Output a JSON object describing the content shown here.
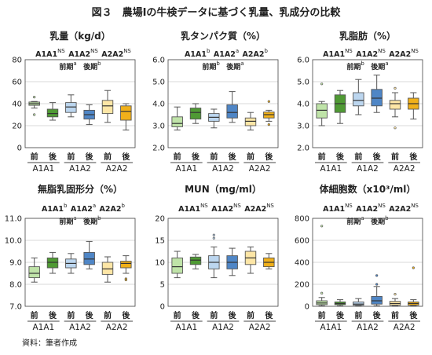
{
  "figure": {
    "title": "図３　農場Ⅰの牛検データに基づく乳量、乳成分の比較",
    "source": "資料：筆者作成"
  },
  "colors": {
    "gray_light": "#e8e8e8",
    "light_green": "#bfe3a8",
    "dark_green": "#4f9a34",
    "light_blue": "#bcd6ef",
    "mid_blue": "#4f86c6",
    "light_yellow": "#fde6a6",
    "gold": "#f0b01a",
    "border": "#555555",
    "grid": "#cccccc"
  },
  "chart_data": [
    {
      "type": "boxplot",
      "title": "乳量（kg/d）",
      "ylim": [
        0,
        80
      ],
      "yticks": [
        "0",
        "20",
        "40",
        "60",
        "80"
      ],
      "significance": {
        "line1": [
          {
            "label": "A1A1",
            "sup": "NS"
          },
          {
            "label": "A1A2",
            "sup": "NS"
          },
          {
            "label": "A2A2",
            "sup": "NS"
          }
        ],
        "line2": [
          {
            "label": "前期",
            "sup": "a"
          },
          {
            "label": "後期",
            "sup": "b"
          }
        ]
      },
      "x_tick_labels": [
        "前",
        "後",
        "前",
        "後",
        "前",
        "後"
      ],
      "group_labels": [
        "A1A1",
        "A1A2",
        "A2A2"
      ],
      "boxes": [
        {
          "q1": 38.5,
          "median": 40,
          "q3": 41.5,
          "min": 36,
          "max": 42,
          "outliers": [
            46,
            30
          ],
          "fill": "light_green"
        },
        {
          "q1": 28,
          "median": 31,
          "q3": 35,
          "min": 25,
          "max": 41,
          "outliers": [],
          "fill": "dark_green"
        },
        {
          "q1": 32,
          "median": 37,
          "q3": 41,
          "min": 28,
          "max": 48,
          "outliers": [],
          "fill": "light_blue"
        },
        {
          "q1": 26,
          "median": 30,
          "q3": 34,
          "min": 21,
          "max": 39,
          "outliers": [],
          "fill": "mid_blue"
        },
        {
          "q1": 31,
          "median": 38,
          "q3": 43,
          "min": 23,
          "max": 52,
          "outliers": [],
          "fill": "light_yellow"
        },
        {
          "q1": 25,
          "median": 33,
          "q3": 38,
          "min": 16,
          "max": 40,
          "outliers": [],
          "fill": "gold"
        }
      ]
    },
    {
      "type": "boxplot",
      "title": "乳タンパク質（%）",
      "ylim": [
        2.0,
        6.0
      ],
      "yticks": [
        "2.0",
        "3.0",
        "4.0",
        "5.0",
        "6.0"
      ],
      "significance": {
        "line1": [
          {
            "label": "A1A1",
            "sup": "b"
          },
          {
            "label": "A1A2",
            "sup": "a"
          },
          {
            "label": "A2A2",
            "sup": "b"
          }
        ],
        "line2": [
          {
            "label": "前期",
            "sup": "b"
          },
          {
            "label": "後期",
            "sup": "a"
          }
        ]
      },
      "x_tick_labels": [
        "前",
        "後",
        "前",
        "後",
        "前",
        "後"
      ],
      "group_labels": [
        "A1A1",
        "A1A2",
        "A2A2"
      ],
      "boxes": [
        {
          "q1": 2.95,
          "median": 3.1,
          "q3": 3.4,
          "min": 2.8,
          "max": 3.85,
          "outliers": [],
          "fill": "light_green"
        },
        {
          "q1": 3.3,
          "median": 3.6,
          "q3": 3.8,
          "min": 3.1,
          "max": 4.0,
          "outliers": [],
          "fill": "dark_green"
        },
        {
          "q1": 3.2,
          "median": 3.38,
          "q3": 3.55,
          "min": 2.9,
          "max": 3.75,
          "outliers": [],
          "fill": "light_blue"
        },
        {
          "q1": 3.35,
          "median": 3.6,
          "q3": 3.95,
          "min": 3.15,
          "max": 4.55,
          "outliers": [],
          "fill": "mid_blue"
        },
        {
          "q1": 3.0,
          "median": 3.2,
          "q3": 3.35,
          "min": 2.8,
          "max": 3.6,
          "outliers": [],
          "fill": "light_yellow"
        },
        {
          "q1": 3.35,
          "median": 3.5,
          "q3": 3.62,
          "min": 3.2,
          "max": 3.7,
          "outliers": [
            4.1,
            3.05
          ],
          "fill": "gold"
        }
      ]
    },
    {
      "type": "boxplot",
      "title": "乳脂肪（%）",
      "ylim": [
        2.0,
        6.0
      ],
      "yticks": [
        "2.0",
        "3.0",
        "4.0",
        "5.0",
        "6.0"
      ],
      "significance": {
        "line1": [
          {
            "label": "A1A1",
            "sup": "NS"
          },
          {
            "label": "A1A2",
            "sup": "NS"
          },
          {
            "label": "A2A2",
            "sup": "NS"
          }
        ],
        "line2": [
          {
            "label": "前期",
            "sup": "b"
          },
          {
            "label": "後期",
            "sup": "a"
          }
        ]
      },
      "x_tick_labels": [
        "前",
        "後",
        "前",
        "後",
        "前",
        "後"
      ],
      "group_labels": [
        "A1A1",
        "A1A2",
        "A2A2"
      ],
      "boxes": [
        {
          "q1": 3.35,
          "median": 3.7,
          "q3": 4.0,
          "min": 3.0,
          "max": 4.1,
          "outliers": [
            4.9
          ],
          "fill": "light_green"
        },
        {
          "q1": 3.6,
          "median": 4.0,
          "q3": 4.4,
          "min": 3.1,
          "max": 4.6,
          "outliers": [],
          "fill": "dark_green"
        },
        {
          "q1": 3.9,
          "median": 4.15,
          "q3": 4.5,
          "min": 3.5,
          "max": 5.1,
          "outliers": [],
          "fill": "light_blue"
        },
        {
          "q1": 3.9,
          "median": 4.25,
          "q3": 4.65,
          "min": 3.6,
          "max": 5.3,
          "outliers": [],
          "fill": "mid_blue"
        },
        {
          "q1": 3.75,
          "median": 4.0,
          "q3": 4.15,
          "min": 3.4,
          "max": 4.5,
          "outliers": [
            2.9,
            4.7
          ],
          "fill": "light_yellow"
        },
        {
          "q1": 3.75,
          "median": 4.0,
          "q3": 4.25,
          "min": 3.3,
          "max": 4.5,
          "outliers": [],
          "fill": "gold"
        }
      ]
    },
    {
      "type": "boxplot",
      "title": "無脂乳固形分（%）",
      "ylim": [
        7.0,
        11.0
      ],
      "yticks": [
        "7.0",
        "8.0",
        "9.0",
        "10.0",
        "11.0"
      ],
      "significance": {
        "line1": [
          {
            "label": "A1A1",
            "sup": "b"
          },
          {
            "label": "A1A2",
            "sup": "a"
          },
          {
            "label": "A2A2",
            "sup": "b"
          }
        ],
        "line2": [
          {
            "label": "前期",
            "sup": "a"
          },
          {
            "label": "後期",
            "sup": "b"
          }
        ]
      },
      "x_tick_labels": [
        "前",
        "後",
        "前",
        "後",
        "前",
        "後"
      ],
      "group_labels": [
        "A1A1",
        "A1A2",
        "A2A2"
      ],
      "boxes": [
        {
          "q1": 8.3,
          "median": 8.5,
          "q3": 8.8,
          "min": 8.1,
          "max": 9.2,
          "outliers": [],
          "fill": "light_green"
        },
        {
          "q1": 8.75,
          "median": 9.0,
          "q3": 9.2,
          "min": 8.5,
          "max": 9.45,
          "outliers": [],
          "fill": "dark_green"
        },
        {
          "q1": 8.75,
          "median": 8.95,
          "q3": 9.15,
          "min": 8.5,
          "max": 9.4,
          "outliers": [],
          "fill": "light_blue"
        },
        {
          "q1": 8.9,
          "median": 9.15,
          "q3": 9.45,
          "min": 8.7,
          "max": 9.95,
          "outliers": [],
          "fill": "mid_blue"
        },
        {
          "q1": 8.45,
          "median": 8.7,
          "q3": 9.0,
          "min": 8.1,
          "max": 9.25,
          "outliers": [],
          "fill": "light_yellow"
        },
        {
          "q1": 8.75,
          "median": 8.95,
          "q3": 9.05,
          "min": 8.5,
          "max": 9.3,
          "outliers": [
            8.25,
            8.2
          ],
          "fill": "gold"
        }
      ]
    },
    {
      "type": "boxplot",
      "title": "MUN（mg/ml）",
      "ylim": [
        0,
        20
      ],
      "yticks": [
        "0",
        "5",
        "10",
        "15",
        "20"
      ],
      "significance": {
        "line1": [
          {
            "label": "A1A1",
            "sup": "NS"
          },
          {
            "label": "A1A2",
            "sup": "NS"
          },
          {
            "label": "A2A2",
            "sup": "NS"
          }
        ],
        "line2": []
      },
      "x_tick_labels": [
        "前",
        "後",
        "前",
        "後",
        "前",
        "後"
      ],
      "group_labels": [
        "A1A1",
        "A1A2",
        "A2A2"
      ],
      "boxes": [
        {
          "q1": 7.5,
          "median": 9.0,
          "q3": 11.0,
          "min": 6.5,
          "max": 12.5,
          "outliers": [],
          "fill": "light_green"
        },
        {
          "q1": 9.5,
          "median": 10.5,
          "q3": 11.2,
          "min": 8.5,
          "max": 11.8,
          "outliers": [],
          "fill": "dark_green"
        },
        {
          "q1": 8.5,
          "median": 10.0,
          "q3": 11.5,
          "min": 6.5,
          "max": 13.5,
          "outliers": [
            15.5,
            16.2
          ],
          "fill": "light_blue"
        },
        {
          "q1": 8.5,
          "median": 10.0,
          "q3": 11.5,
          "min": 7.0,
          "max": 13.2,
          "outliers": [],
          "fill": "mid_blue"
        },
        {
          "q1": 9.5,
          "median": 11.0,
          "q3": 12.5,
          "min": 7.5,
          "max": 13.5,
          "outliers": [],
          "fill": "light_yellow"
        },
        {
          "q1": 9.0,
          "median": 10.0,
          "q3": 11.0,
          "min": 8.5,
          "max": 12.0,
          "outliers": [],
          "fill": "gold"
        }
      ]
    },
    {
      "type": "boxplot",
      "title": "体細胞数（x10³/ml）",
      "ylim": [
        0,
        800
      ],
      "yticks": [
        "0",
        "200",
        "400",
        "600",
        "800"
      ],
      "significance": {
        "line1": [
          {
            "label": "A1A1",
            "sup": "NS"
          },
          {
            "label": "A1A2",
            "sup": "NS"
          },
          {
            "label": "A2A2",
            "sup": "NS"
          }
        ],
        "line2": [
          {
            "label": "前期",
            "sup": "a"
          },
          {
            "label": "後期",
            "sup": "b"
          }
        ]
      },
      "x_tick_labels": [
        "前",
        "後",
        "前",
        "後",
        "前",
        "後"
      ],
      "group_labels": [
        "A1A1",
        "A1A2",
        "A2A2"
      ],
      "boxes": [
        {
          "q1": 15,
          "median": 30,
          "q3": 50,
          "min": 5,
          "max": 80,
          "outliers": [
            730,
            120
          ],
          "fill": "light_green"
        },
        {
          "q1": 15,
          "median": 25,
          "q3": 40,
          "min": 5,
          "max": 60,
          "outliers": [],
          "fill": "dark_green"
        },
        {
          "q1": 10,
          "median": 20,
          "q3": 40,
          "min": 5,
          "max": 70,
          "outliers": [],
          "fill": "light_blue"
        },
        {
          "q1": 20,
          "median": 50,
          "q3": 90,
          "min": 5,
          "max": 180,
          "outliers": [
            280,
            200
          ],
          "fill": "mid_blue"
        },
        {
          "q1": 10,
          "median": 25,
          "q3": 45,
          "min": 5,
          "max": 70,
          "outliers": [
            110
          ],
          "fill": "light_yellow"
        },
        {
          "q1": 10,
          "median": 25,
          "q3": 40,
          "min": 5,
          "max": 60,
          "outliers": [
            350
          ],
          "fill": "gold"
        }
      ]
    }
  ]
}
